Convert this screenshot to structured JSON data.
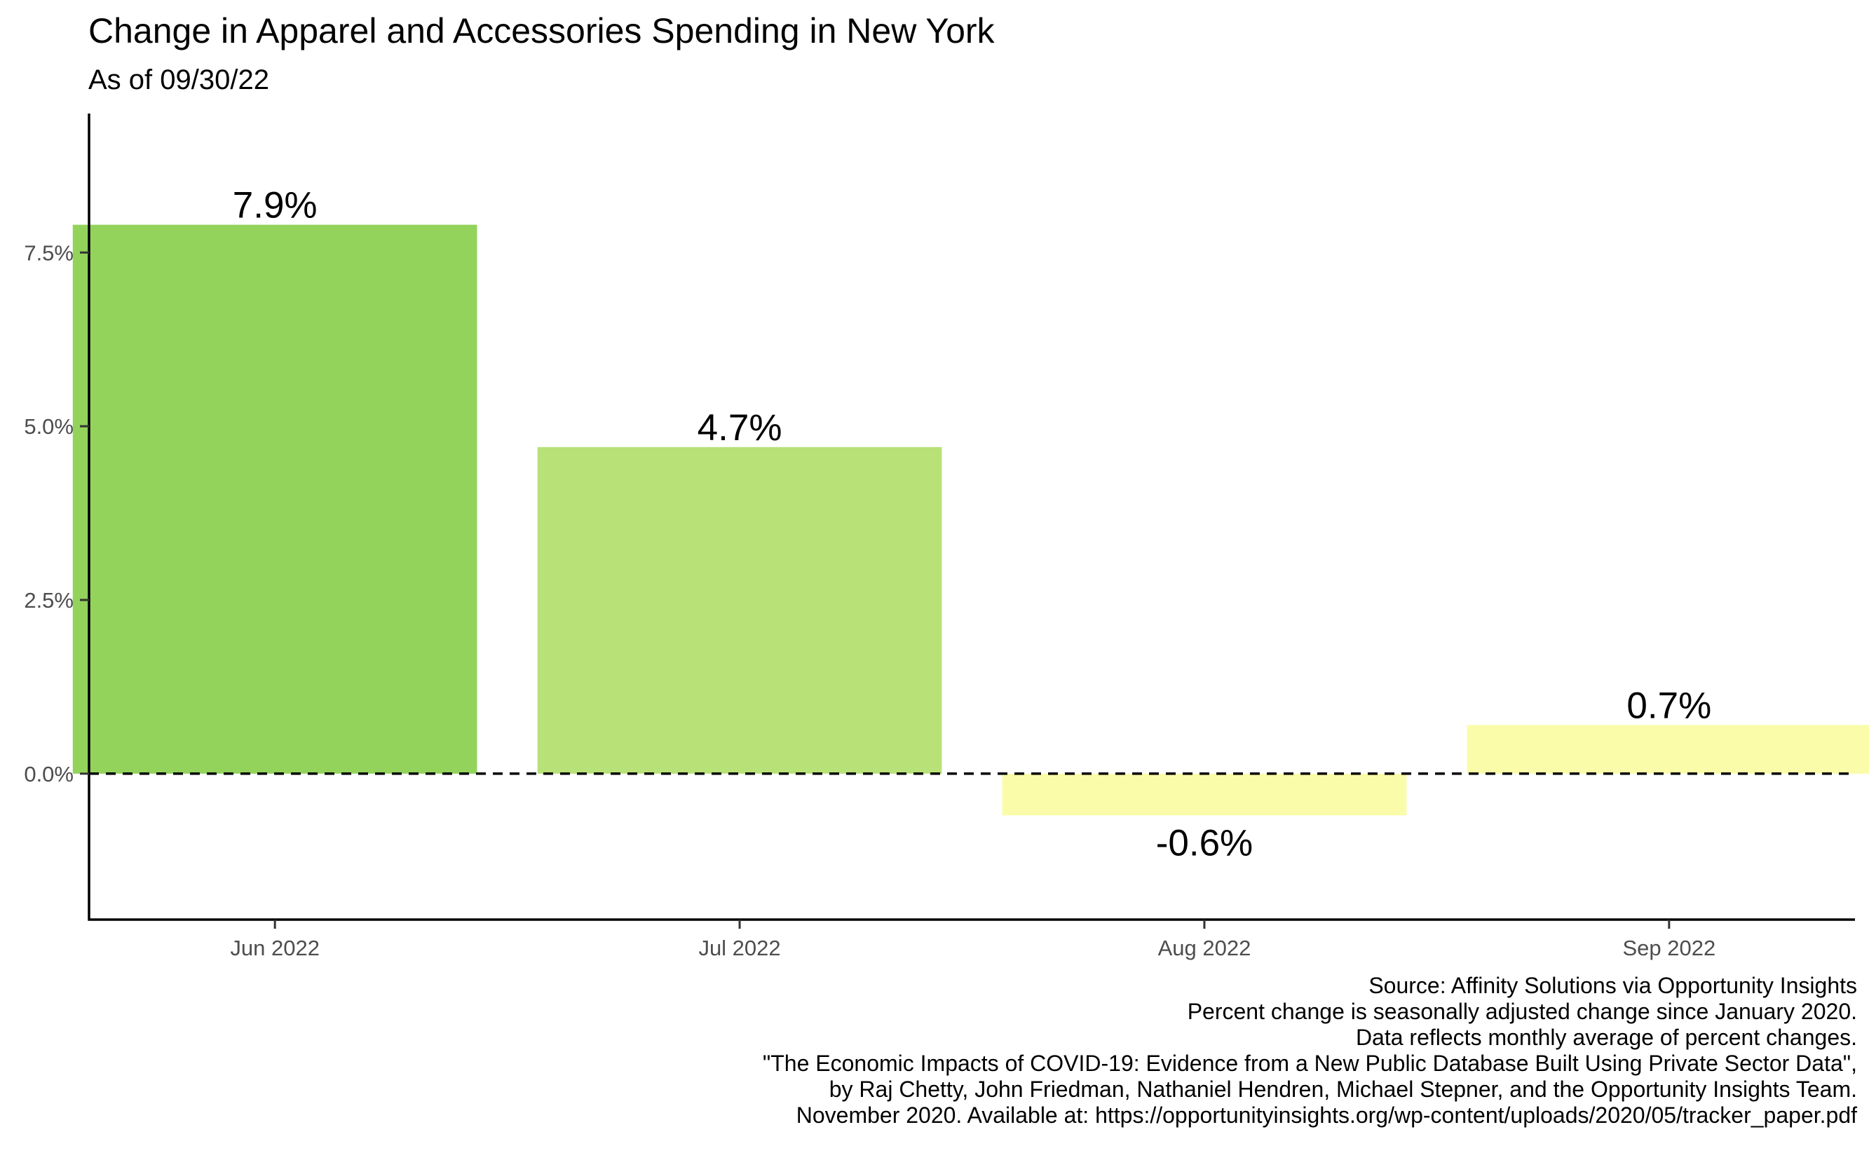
{
  "chart_data": {
    "type": "bar",
    "title": "Change in Apparel and Accessories Spending in New York",
    "subtitle": "As of 09/30/22",
    "xlabel": "",
    "ylabel": "",
    "categories": [
      "Jun 2022",
      "Jul 2022",
      "Aug 2022",
      "Sep 2022"
    ],
    "values": [
      7.9,
      4.7,
      -0.6,
      0.7
    ],
    "value_labels": [
      "7.9%",
      "4.7%",
      "-0.6%",
      "0.7%"
    ],
    "bar_colors": [
      "#93d35c",
      "#b8e178",
      "#fafcaa",
      "#fafcaa"
    ],
    "ylim": [
      -2.1,
      9.5
    ],
    "yticks": [
      0,
      2.5,
      5,
      7.5
    ],
    "ytick_labels": [
      "0.0%",
      "2.5%",
      "5.0%",
      "7.5%"
    ],
    "reference_line": {
      "y": 0,
      "style": "dashed"
    },
    "grid": false,
    "legend": "none",
    "caption": [
      "Source: Affinity Solutions via Opportunity Insights",
      "Percent change is seasonally adjusted change since January 2020.",
      "Data reflects monthly average of percent changes.",
      "\"The Economic Impacts of COVID-19: Evidence from a New Public Database Built Using Private Sector Data\",",
      "by Raj Chetty, John Friedman, Nathaniel Hendren, Michael Stepner, and the Opportunity Insights Team.",
      "November 2020. Available at: https://opportunityinsights.org/wp-content/uploads/2020/05/tracker_paper.pdf"
    ]
  }
}
